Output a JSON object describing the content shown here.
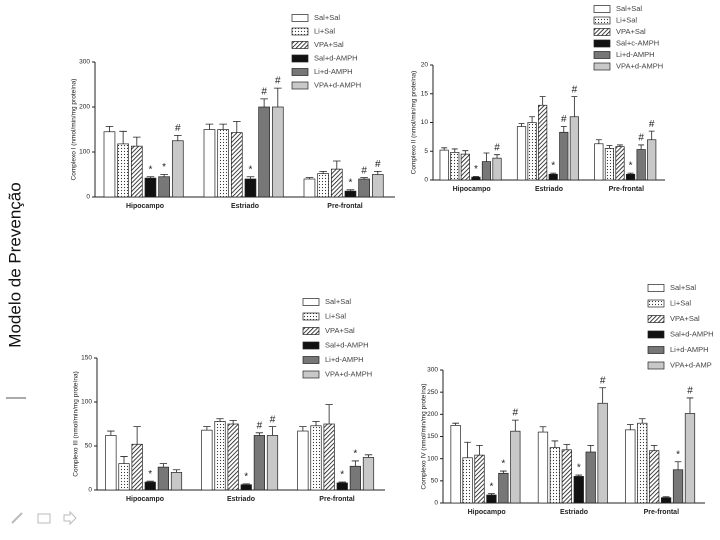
{
  "slide_title": "Modelo de Prevenção",
  "chart_data": [
    {
      "type": "bar",
      "ylabel": "Complexo I (nmol/min/mg proteína)",
      "categories": [
        "Hipocampo",
        "Estriado",
        "Pre-frontal"
      ],
      "ylim": [
        0,
        300
      ],
      "yticks": [
        0,
        100,
        200,
        300
      ],
      "series": [
        {
          "name": "Sal+Sal",
          "color": "#ffffff",
          "values": [
            145,
            150,
            40
          ],
          "errors": [
            12,
            12,
            3
          ],
          "markers": [
            null,
            null,
            null
          ]
        },
        {
          "name": "Li+Sal",
          "color": "#ffffff",
          "pattern": "dots",
          "values": [
            118,
            150,
            52
          ],
          "errors": [
            28,
            12,
            5
          ],
          "markers": [
            null,
            null,
            null
          ]
        },
        {
          "name": "VPA+Sal",
          "color": "#ffffff",
          "pattern": "hatch",
          "values": [
            113,
            143,
            62
          ],
          "errors": [
            20,
            25,
            18
          ],
          "markers": [
            null,
            null,
            null
          ]
        },
        {
          "name": "Sal+d-AMPH",
          "color": "#111111",
          "values": [
            42,
            40,
            13
          ],
          "errors": [
            3,
            5,
            3
          ],
          "markers": [
            "*",
            "*",
            "*"
          ]
        },
        {
          "name": "Li+d-AMPH",
          "color": "#777777",
          "values": [
            45,
            200,
            40
          ],
          "errors": [
            5,
            18,
            3
          ],
          "markers": [
            "*",
            "#",
            "#"
          ]
        },
        {
          "name": "VPA+d-AMPH",
          "color": "#c8c8c8",
          "values": [
            125,
            200,
            50
          ],
          "errors": [
            12,
            42,
            7
          ],
          "markers": [
            "#",
            "#",
            "#"
          ]
        }
      ]
    },
    {
      "type": "bar",
      "ylabel": "Complexo II (nmol/min/mg proteína)",
      "categories": [
        "Hipocampo",
        "Estriado",
        "Pre-frontal"
      ],
      "ylim": [
        0,
        20
      ],
      "yticks": [
        0,
        5,
        10,
        15,
        20
      ],
      "series": [
        {
          "name": "Sal+Sal",
          "color": "#ffffff",
          "values": [
            5.2,
            9.3,
            6.3
          ],
          "errors": [
            0.4,
            0.5,
            0.7
          ],
          "markers": [
            null,
            null,
            null
          ]
        },
        {
          "name": "Li+Sal",
          "color": "#ffffff",
          "pattern": "dots",
          "values": [
            4.8,
            10,
            5.5
          ],
          "errors": [
            0.6,
            1,
            0.5
          ],
          "markers": [
            null,
            null,
            null
          ]
        },
        {
          "name": "VPA+Sal",
          "color": "#ffffff",
          "pattern": "hatch",
          "values": [
            4.5,
            13,
            5.8
          ],
          "errors": [
            0.6,
            1.5,
            0.3
          ],
          "markers": [
            null,
            null,
            null
          ]
        },
        {
          "name": "Sal+c-AMPH",
          "color": "#111111",
          "values": [
            0.5,
            1,
            1
          ],
          "errors": [
            0.1,
            0.2,
            0.2
          ],
          "markers": [
            "*",
            "*",
            "*"
          ]
        },
        {
          "name": "Li+d-AMPH",
          "color": "#777777",
          "values": [
            3.2,
            8.3,
            5.3
          ],
          "errors": [
            1.5,
            1,
            0.8
          ],
          "markers": [
            null,
            "#",
            "#"
          ]
        },
        {
          "name": "VPA+d-AMPH",
          "color": "#c8c8c8",
          "values": [
            3.8,
            11,
            7
          ],
          "errors": [
            0.6,
            3.5,
            1.5
          ],
          "markers": [
            "#",
            "#",
            "#"
          ]
        }
      ]
    },
    {
      "type": "bar",
      "ylabel": "Complexo III (nmol/min/mg proteína)",
      "categories": [
        "Hipocampo",
        "Estriado",
        "Pre-frontal"
      ],
      "ylim": [
        0,
        150
      ],
      "yticks": [
        0,
        50,
        100,
        150
      ],
      "series": [
        {
          "name": "Sal+Sal",
          "color": "#ffffff",
          "values": [
            62,
            68,
            67
          ],
          "errors": [
            5,
            4,
            5
          ],
          "markers": [
            null,
            null,
            null
          ]
        },
        {
          "name": "Li+Sal",
          "color": "#ffffff",
          "pattern": "dots",
          "values": [
            30,
            78,
            73
          ],
          "errors": [
            8,
            3,
            5
          ],
          "markers": [
            null,
            null,
            null
          ]
        },
        {
          "name": "VPA+Sal",
          "color": "#ffffff",
          "pattern": "hatch",
          "values": [
            52,
            75,
            75
          ],
          "errors": [
            20,
            4,
            22
          ],
          "markers": [
            null,
            null,
            null
          ]
        },
        {
          "name": "Sal+d-AMPH",
          "color": "#111111",
          "values": [
            9,
            6,
            8
          ],
          "errors": [
            1,
            1,
            1
          ],
          "markers": [
            "*",
            "*",
            "*"
          ]
        },
        {
          "name": "Li+d-AMPH",
          "color": "#777777",
          "values": [
            26,
            62,
            27
          ],
          "errors": [
            4,
            3,
            6
          ],
          "markers": [
            null,
            "#",
            "*"
          ]
        },
        {
          "name": "VPA+d-AMPH",
          "color": "#c8c8c8",
          "values": [
            20,
            62,
            37
          ],
          "errors": [
            3,
            10,
            3
          ],
          "markers": [
            null,
            "#",
            null
          ]
        }
      ]
    },
    {
      "type": "bar",
      "ylabel": "Complexo IV (nmol/min/mg proteína)",
      "categories": [
        "Hipocampo",
        "Estriado",
        "Pre-frontal"
      ],
      "ylim": [
        0,
        300
      ],
      "yticks": [
        0,
        50,
        100,
        150,
        200,
        250,
        300
      ],
      "series": [
        {
          "name": "Sal+Sal",
          "color": "#ffffff",
          "values": [
            175,
            160,
            165
          ],
          "errors": [
            5,
            12,
            12
          ],
          "markers": [
            null,
            null,
            null
          ]
        },
        {
          "name": "Li+Sal",
          "color": "#ffffff",
          "pattern": "dots",
          "values": [
            102,
            125,
            180
          ],
          "errors": [
            35,
            15,
            10
          ],
          "markers": [
            null,
            null,
            null
          ]
        },
        {
          "name": "VPA+Sal",
          "color": "#ffffff",
          "pattern": "hatch",
          "values": [
            108,
            120,
            118
          ],
          "errors": [
            22,
            12,
            12
          ],
          "markers": [
            null,
            null,
            null
          ]
        },
        {
          "name": "Sal+d-AMPH",
          "color": "#111111",
          "values": [
            18,
            60,
            12
          ],
          "errors": [
            3,
            3,
            2
          ],
          "markers": [
            "*",
            "*",
            null
          ]
        },
        {
          "name": "Li+d-AMPH",
          "color": "#777777",
          "values": [
            67,
            115,
            75
          ],
          "errors": [
            5,
            15,
            18
          ],
          "markers": [
            "*",
            null,
            "*"
          ]
        },
        {
          "name": "VPA+d-AMP",
          "color": "#c8c8c8",
          "values": [
            162,
            225,
            202
          ],
          "errors": [
            25,
            35,
            35
          ],
          "markers": [
            "#",
            "#",
            "#"
          ]
        }
      ]
    }
  ]
}
